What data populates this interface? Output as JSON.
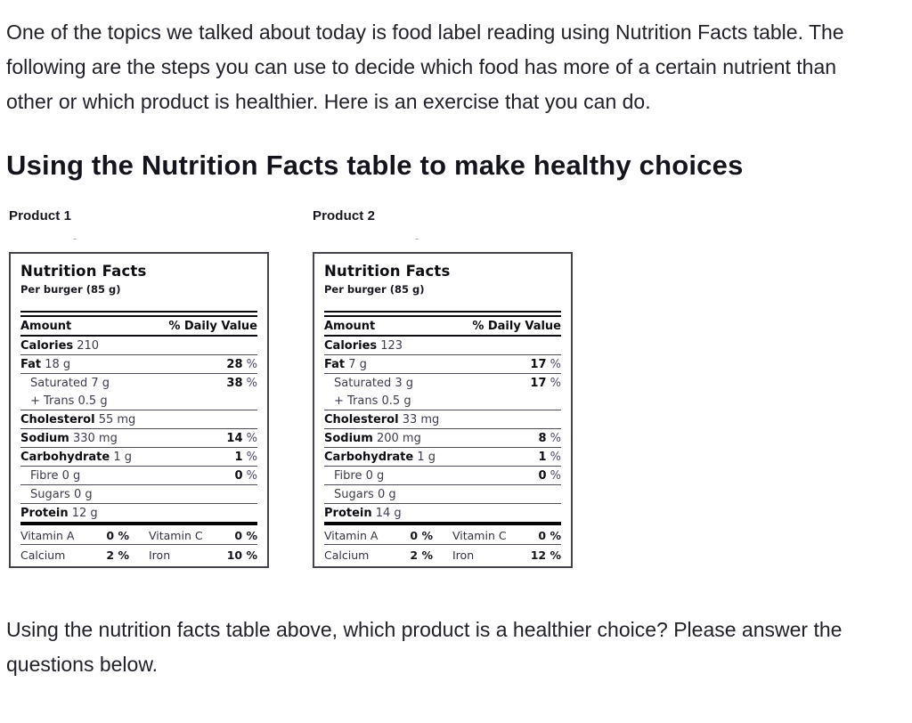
{
  "intro": "One of the topics we talked about today is food label reading using Nutrition Facts table. The following are the steps you can use to decide which food has more of a certain nutrient than other or which product is healthier. Here is an exercise that you can do.",
  "heading": "Using the Nutrition Facts table to make healthy choices",
  "outro": "Using the nutrition facts table above, which product is a healthier choice? Please answer the questions below.",
  "percent_sign": "%",
  "colors": {
    "text": "#212129",
    "table_bold": "#0d0d12",
    "table_regular": "#3c3c4c",
    "thick_rule": "#0c0c10",
    "thin_rule": "#4b4b57"
  },
  "products": [
    {
      "label": "Product 1",
      "dash": "-",
      "table": {
        "title": "Nutrition Facts",
        "serving": "Per burger (85 g)",
        "header": {
          "amount": "Amount",
          "daily_value": "% Daily Value"
        },
        "rows": [
          {
            "bold": "Calories",
            "reg": "210",
            "dv": "",
            "indent": false,
            "border": "thin"
          },
          {
            "bold": "Fat",
            "reg": "18 g",
            "dv": "28",
            "indent": false,
            "border": "thin"
          },
          {
            "bold": "",
            "reg": "Saturated 7 g",
            "dv": "38",
            "indent": true,
            "border": "none"
          },
          {
            "bold": "",
            "reg": "+ Trans 0.5 g",
            "dv": "",
            "indent": true,
            "border": "thin"
          },
          {
            "bold": "Cholesterol",
            "reg": "55 mg",
            "dv": "",
            "indent": false,
            "border": "thin"
          },
          {
            "bold": "Sodium",
            "reg": "330 mg",
            "dv": "14",
            "indent": false,
            "border": "thin"
          },
          {
            "bold": "Carbohydrate",
            "reg": "1 g",
            "dv": "1",
            "indent": false,
            "border": "thin"
          },
          {
            "bold": "",
            "reg": "Fibre 0 g",
            "dv": "0",
            "indent": true,
            "border": "thin"
          },
          {
            "bold": "",
            "reg": "Sugars 0 g",
            "dv": "",
            "indent": true,
            "border": "thin"
          },
          {
            "bold": "Protein",
            "reg": "12 g",
            "dv": "",
            "indent": false,
            "border": "thick"
          }
        ],
        "micros": [
          {
            "n1": "Vitamin A",
            "v1": "0 %",
            "n2": "Vitamin C",
            "v2": "0 %",
            "border": "thin"
          },
          {
            "n1": "Calcium",
            "v1": "2 %",
            "n2": "Iron",
            "v2": "10 %",
            "border": "none"
          }
        ]
      }
    },
    {
      "label": "Product 2",
      "dash": "-",
      "table": {
        "title": "Nutrition Facts",
        "serving": "Per burger (85 g)",
        "header": {
          "amount": "Amount",
          "daily_value": "% Daily Value"
        },
        "rows": [
          {
            "bold": "Calories",
            "reg": "123",
            "dv": "",
            "indent": false,
            "border": "thin"
          },
          {
            "bold": "Fat",
            "reg": "7 g",
            "dv": "17",
            "indent": false,
            "border": "thin"
          },
          {
            "bold": "",
            "reg": "Saturated 3 g",
            "dv": "17",
            "indent": true,
            "border": "none"
          },
          {
            "bold": "",
            "reg": "+ Trans 0.5 g",
            "dv": "",
            "indent": true,
            "border": "thin"
          },
          {
            "bold": "Cholesterol",
            "reg": "33 mg",
            "dv": "",
            "indent": false,
            "border": "thin"
          },
          {
            "bold": "Sodium",
            "reg": "200 mg",
            "dv": "8",
            "indent": false,
            "border": "thin"
          },
          {
            "bold": "Carbohydrate",
            "reg": "1 g",
            "dv": "1",
            "indent": false,
            "border": "thin"
          },
          {
            "bold": "",
            "reg": "Fibre 0 g",
            "dv": "0",
            "indent": true,
            "border": "thin"
          },
          {
            "bold": "",
            "reg": "Sugars 0 g",
            "dv": "",
            "indent": true,
            "border": "thin"
          },
          {
            "bold": "Protein",
            "reg": "14 g",
            "dv": "",
            "indent": false,
            "border": "thick"
          }
        ],
        "micros": [
          {
            "n1": "Vitamin A",
            "v1": "0 %",
            "n2": "Vitamin C",
            "v2": "0 %",
            "border": "thin"
          },
          {
            "n1": "Calcium",
            "v1": "2 %",
            "n2": "Iron",
            "v2": "12 %",
            "border": "none"
          }
        ]
      }
    }
  ]
}
